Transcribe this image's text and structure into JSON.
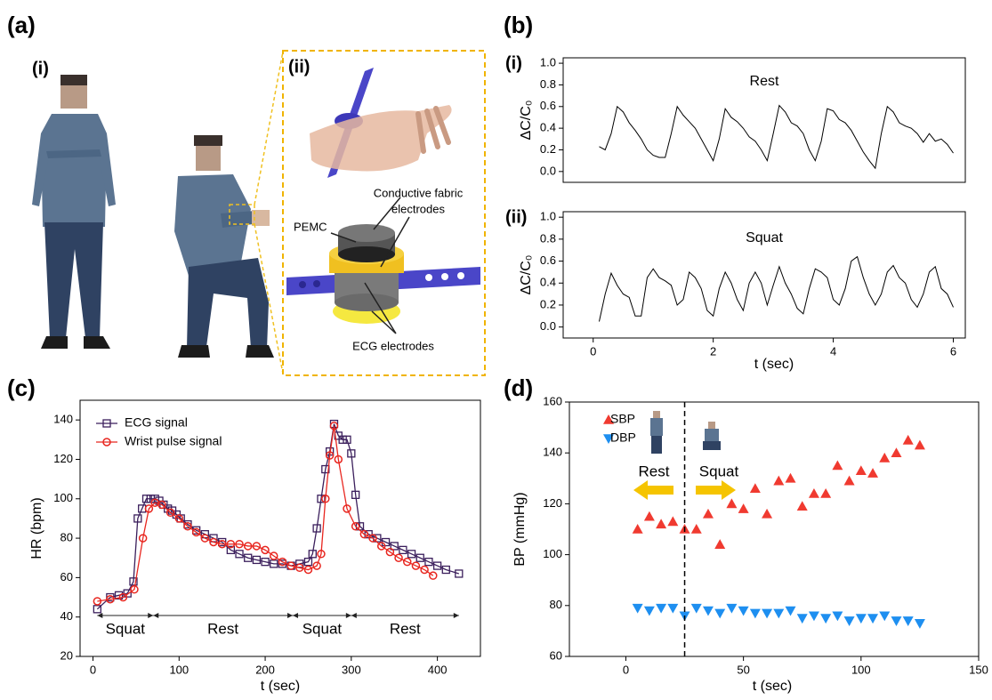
{
  "figure": {
    "panel_labels": [
      "(a)",
      "(b)",
      "(c)",
      "(d)"
    ],
    "panel_a": {
      "sub_labels": [
        "(i)",
        "(ii)"
      ],
      "callouts": [
        "Conductive fabric",
        "electrodes",
        "PEMC",
        "ECG electrodes"
      ]
    }
  },
  "chart_data": [
    {
      "type": "line",
      "sub_label": "(i)",
      "annotation": "Rest",
      "y_label": "ΔC/C₀",
      "color": "#000000",
      "x": [
        0.1,
        0.2,
        0.3,
        0.4,
        0.5,
        0.6,
        0.7,
        0.8,
        0.9,
        1.0,
        1.1,
        1.2,
        1.3,
        1.4,
        1.5,
        1.6,
        1.7,
        1.8,
        1.9,
        2.0,
        2.1,
        2.2,
        2.3,
        2.4,
        2.5,
        2.6,
        2.7,
        2.8,
        2.9,
        3.0,
        3.1,
        3.2,
        3.3,
        3.4,
        3.5,
        3.6,
        3.7,
        3.8,
        3.9,
        4.0,
        4.1,
        4.2,
        4.3,
        4.4,
        4.5,
        4.6,
        4.7,
        4.8,
        4.9,
        5.0,
        5.1,
        5.2,
        5.3,
        5.4,
        5.5,
        5.6,
        5.7,
        5.8,
        5.9,
        6.0
      ],
      "values": [
        0.23,
        0.2,
        0.35,
        0.6,
        0.55,
        0.45,
        0.38,
        0.3,
        0.2,
        0.15,
        0.13,
        0.13,
        0.35,
        0.6,
        0.52,
        0.46,
        0.4,
        0.3,
        0.2,
        0.1,
        0.3,
        0.58,
        0.5,
        0.46,
        0.4,
        0.32,
        0.28,
        0.2,
        0.1,
        0.35,
        0.61,
        0.55,
        0.45,
        0.42,
        0.35,
        0.2,
        0.1,
        0.28,
        0.58,
        0.56,
        0.48,
        0.45,
        0.38,
        0.28,
        0.18,
        0.1,
        0.03,
        0.35,
        0.6,
        0.55,
        0.45,
        0.42,
        0.4,
        0.35,
        0.27,
        0.35,
        0.28,
        0.3,
        0.25,
        0.17
      ],
      "xlim": [
        -0.5,
        6.2
      ],
      "ylim": [
        -0.1,
        1.05
      ],
      "yticks": [
        {
          "value": 0,
          "label": "0.0"
        },
        0.2,
        0.4,
        0.6,
        0.8,
        {
          "value": 1,
          "label": "1.0"
        }
      ]
    },
    {
      "type": "line",
      "sub_label": "(ii)",
      "annotation": "Squat",
      "y_label": "ΔC/C₀",
      "x_label": "t (sec)",
      "color": "#000000",
      "x": [
        0.1,
        0.2,
        0.3,
        0.4,
        0.5,
        0.6,
        0.7,
        0.8,
        0.9,
        1.0,
        1.1,
        1.2,
        1.3,
        1.4,
        1.5,
        1.6,
        1.7,
        1.8,
        1.9,
        2.0,
        2.1,
        2.2,
        2.3,
        2.4,
        2.5,
        2.6,
        2.7,
        2.8,
        2.9,
        3.0,
        3.1,
        3.2,
        3.3,
        3.4,
        3.5,
        3.6,
        3.7,
        3.8,
        3.9,
        4.0,
        4.1,
        4.2,
        4.3,
        4.4,
        4.5,
        4.6,
        4.7,
        4.8,
        4.9,
        5.0,
        5.1,
        5.2,
        5.3,
        5.4,
        5.5,
        5.6,
        5.7,
        5.8,
        5.9,
        6.0
      ],
      "values": [
        0.05,
        0.3,
        0.49,
        0.38,
        0.3,
        0.27,
        0.1,
        0.1,
        0.45,
        0.53,
        0.45,
        0.42,
        0.38,
        0.2,
        0.25,
        0.5,
        0.45,
        0.35,
        0.15,
        0.1,
        0.35,
        0.5,
        0.4,
        0.25,
        0.15,
        0.4,
        0.5,
        0.4,
        0.2,
        0.38,
        0.55,
        0.4,
        0.3,
        0.17,
        0.12,
        0.35,
        0.53,
        0.5,
        0.45,
        0.25,
        0.2,
        0.35,
        0.6,
        0.64,
        0.45,
        0.3,
        0.2,
        0.3,
        0.5,
        0.56,
        0.45,
        0.4,
        0.25,
        0.18,
        0.3,
        0.5,
        0.55,
        0.35,
        0.3,
        0.18
      ],
      "xlim": [
        -0.5,
        6.2
      ],
      "ylim": [
        -0.1,
        1.05
      ],
      "xticks": [
        0,
        2,
        4,
        6
      ],
      "yticks": [
        {
          "value": 0,
          "label": "0.0"
        },
        0.2,
        0.4,
        0.6,
        0.8,
        {
          "value": 1,
          "label": "1.0"
        }
      ]
    },
    {
      "type": "line",
      "y_label": "HR (bpm)",
      "x_label": "t (sec)",
      "legend": "upper left",
      "xlim": [
        -15,
        450
      ],
      "ylim": [
        20,
        150
      ],
      "xticks": [
        0,
        100,
        200,
        300,
        400
      ],
      "yticks": [
        20,
        40,
        60,
        80,
        100,
        120,
        140
      ],
      "series": [
        {
          "name": "ECG signal",
          "color": "#3b1f5c",
          "marker": "square",
          "x": [
            5,
            20,
            30,
            40,
            47,
            52,
            57,
            62,
            67,
            72,
            77,
            82,
            87,
            92,
            97,
            102,
            110,
            120,
            130,
            140,
            150,
            160,
            170,
            180,
            190,
            200,
            210,
            220,
            230,
            240,
            250,
            255,
            260,
            265,
            270,
            275,
            280,
            285,
            290,
            295,
            300,
            305,
            310,
            320,
            330,
            340,
            350,
            360,
            370,
            380,
            390,
            400,
            410,
            425
          ],
          "values": [
            44,
            50,
            51,
            52,
            58,
            90,
            95,
            100,
            100,
            100,
            99,
            97,
            95,
            94,
            92,
            90,
            87,
            84,
            82,
            80,
            78,
            74,
            72,
            70,
            69,
            68,
            67,
            67,
            66,
            67,
            68,
            72,
            85,
            100,
            115,
            124,
            138,
            132,
            130,
            130,
            123,
            102,
            86,
            82,
            80,
            78,
            76,
            74,
            72,
            70,
            68,
            66,
            64,
            62
          ]
        },
        {
          "name": "Wrist pulse signal",
          "color": "#e8261f",
          "marker": "circle",
          "x": [
            5,
            20,
            35,
            48,
            58,
            65,
            72,
            80,
            90,
            100,
            110,
            120,
            130,
            140,
            150,
            160,
            170,
            180,
            190,
            200,
            210,
            220,
            230,
            240,
            250,
            260,
            265,
            270,
            275,
            280,
            285,
            295,
            305,
            315,
            325,
            335,
            345,
            355,
            365,
            375,
            385,
            395
          ],
          "values": [
            48,
            49,
            50,
            54,
            80,
            95,
            98,
            97,
            93,
            90,
            86,
            83,
            80,
            78,
            77,
            77,
            77,
            76,
            76,
            74,
            71,
            68,
            66,
            65,
            64,
            66,
            72,
            100,
            122,
            137,
            120,
            95,
            86,
            82,
            80,
            76,
            73,
            70,
            68,
            66,
            64,
            61
          ]
        }
      ],
      "phases": [
        {
          "label": "Squat",
          "start": 5,
          "end": 70
        },
        {
          "label": "Rest",
          "start": 70,
          "end": 232
        },
        {
          "label": "Squat",
          "start": 232,
          "end": 300
        },
        {
          "label": "Rest",
          "start": 300,
          "end": 425
        }
      ]
    },
    {
      "type": "scatter",
      "y_label": "BP (mmHg)",
      "x_label": "t (sec)",
      "legend": "upper left",
      "xlim": [
        -24,
        150
      ],
      "ylim": [
        60,
        160
      ],
      "xticks": [
        0,
        50,
        100,
        150
      ],
      "yticks": [
        60,
        80,
        100,
        120,
        140,
        160
      ],
      "divider_x": 25,
      "annotations": [
        "Rest",
        "Squat"
      ],
      "series": [
        {
          "name": "SBP",
          "color": "#f03a30",
          "marker": "triangle-up",
          "x": [
            5,
            10,
            15,
            20,
            25,
            30,
            35,
            40,
            45,
            50,
            55,
            60,
            65,
            70,
            75,
            80,
            85,
            90,
            95,
            100,
            105,
            110,
            115,
            120,
            125
          ],
          "values": [
            110,
            115,
            112,
            113,
            110,
            110,
            116,
            104,
            120,
            118,
            126,
            116,
            129,
            130,
            119,
            124,
            124,
            135,
            129,
            133,
            132,
            138,
            140,
            145,
            143
          ]
        },
        {
          "name": "DBP",
          "color": "#1e8ff0",
          "marker": "triangle-down",
          "x": [
            5,
            10,
            15,
            20,
            25,
            30,
            35,
            40,
            45,
            50,
            55,
            60,
            65,
            70,
            75,
            80,
            85,
            90,
            95,
            100,
            105,
            110,
            115,
            120,
            125
          ],
          "values": [
            79,
            78,
            79,
            79,
            76,
            79,
            78,
            77,
            79,
            78,
            77,
            77,
            77,
            78,
            75,
            76,
            75,
            76,
            74,
            75,
            75,
            76,
            74,
            74,
            73
          ]
        }
      ]
    }
  ]
}
